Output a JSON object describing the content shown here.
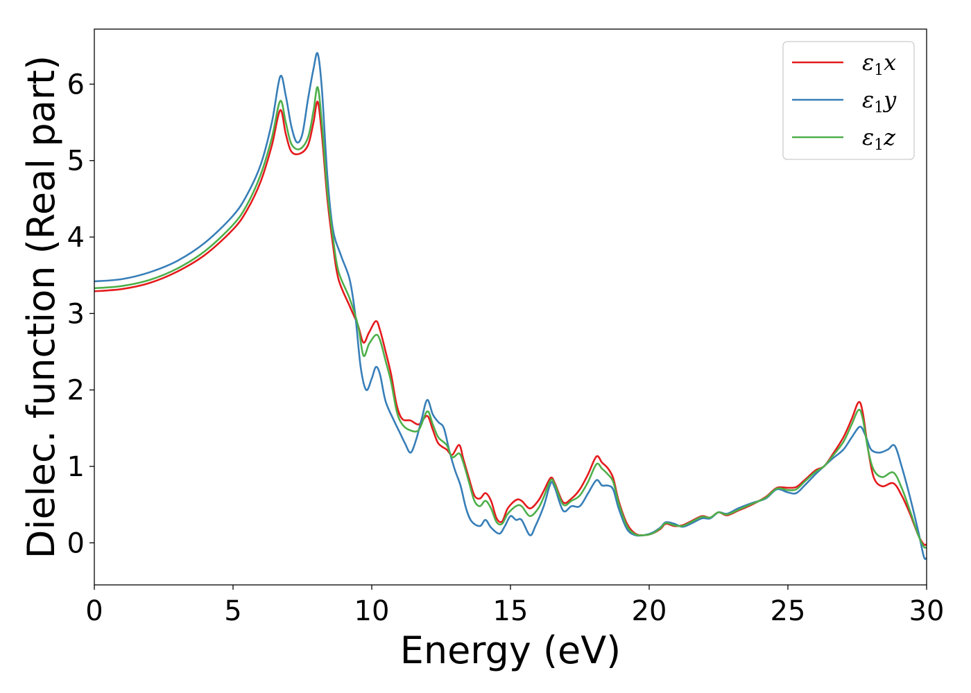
{
  "chart_data": {
    "type": "line",
    "title": "",
    "xlabel": "Energy (eV)",
    "ylabel": "Dielec. function (Real part)",
    "xlim": [
      0,
      30
    ],
    "ylim": [
      -0.55,
      6.72
    ],
    "xticks": [
      0,
      5,
      10,
      15,
      20,
      25,
      30
    ],
    "yticks": [
      0,
      1,
      2,
      3,
      4,
      5,
      6
    ],
    "grid": false,
    "legend_position": "top-right",
    "series": [
      {
        "name": "ε1x",
        "label_base": "ε",
        "label_sub": "1",
        "label_rest": "x",
        "color": "#e41a1c",
        "points": [
          [
            0,
            3.29
          ],
          [
            1,
            3.32
          ],
          [
            2,
            3.4
          ],
          [
            3,
            3.55
          ],
          [
            4,
            3.77
          ],
          [
            5,
            4.1
          ],
          [
            5.5,
            4.35
          ],
          [
            6,
            4.73
          ],
          [
            6.4,
            5.2
          ],
          [
            6.7,
            5.66
          ],
          [
            6.9,
            5.35
          ],
          [
            7.1,
            5.12
          ],
          [
            7.4,
            5.09
          ],
          [
            7.7,
            5.2
          ],
          [
            7.9,
            5.5
          ],
          [
            8.05,
            5.77
          ],
          [
            8.2,
            5.35
          ],
          [
            8.4,
            4.5
          ],
          [
            8.6,
            3.9
          ],
          [
            8.8,
            3.45
          ],
          [
            9.2,
            3.1
          ],
          [
            9.5,
            2.85
          ],
          [
            9.7,
            2.62
          ],
          [
            9.9,
            2.75
          ],
          [
            10.15,
            2.9
          ],
          [
            10.3,
            2.78
          ],
          [
            10.5,
            2.5
          ],
          [
            10.7,
            2.2
          ],
          [
            10.9,
            1.8
          ],
          [
            11.1,
            1.62
          ],
          [
            11.4,
            1.6
          ],
          [
            11.7,
            1.55
          ],
          [
            12.0,
            1.66
          ],
          [
            12.2,
            1.48
          ],
          [
            12.4,
            1.3
          ],
          [
            12.7,
            1.22
          ],
          [
            12.9,
            1.15
          ],
          [
            13.15,
            1.28
          ],
          [
            13.3,
            1.1
          ],
          [
            13.5,
            0.85
          ],
          [
            13.7,
            0.62
          ],
          [
            13.9,
            0.58
          ],
          [
            14.1,
            0.65
          ],
          [
            14.3,
            0.55
          ],
          [
            14.5,
            0.32
          ],
          [
            14.7,
            0.28
          ],
          [
            14.9,
            0.45
          ],
          [
            15.2,
            0.56
          ],
          [
            15.4,
            0.55
          ],
          [
            15.7,
            0.45
          ],
          [
            16.0,
            0.55
          ],
          [
            16.2,
            0.68
          ],
          [
            16.45,
            0.85
          ],
          [
            16.6,
            0.78
          ],
          [
            16.9,
            0.53
          ],
          [
            17.2,
            0.58
          ],
          [
            17.5,
            0.7
          ],
          [
            17.8,
            0.9
          ],
          [
            18.1,
            1.13
          ],
          [
            18.3,
            1.05
          ],
          [
            18.5,
            0.98
          ],
          [
            18.7,
            0.85
          ],
          [
            18.9,
            0.55
          ],
          [
            19.2,
            0.25
          ],
          [
            19.5,
            0.12
          ],
          [
            19.8,
            0.1
          ],
          [
            20.1,
            0.12
          ],
          [
            20.4,
            0.18
          ],
          [
            20.6,
            0.25
          ],
          [
            20.9,
            0.22
          ],
          [
            21.2,
            0.23
          ],
          [
            21.5,
            0.28
          ],
          [
            21.9,
            0.35
          ],
          [
            22.2,
            0.33
          ],
          [
            22.5,
            0.4
          ],
          [
            22.8,
            0.36
          ],
          [
            23.2,
            0.42
          ],
          [
            23.7,
            0.5
          ],
          [
            24.2,
            0.6
          ],
          [
            24.6,
            0.72
          ],
          [
            25.0,
            0.72
          ],
          [
            25.3,
            0.73
          ],
          [
            25.6,
            0.82
          ],
          [
            26.0,
            0.95
          ],
          [
            26.3,
            1.0
          ],
          [
            26.6,
            1.15
          ],
          [
            27.0,
            1.38
          ],
          [
            27.3,
            1.62
          ],
          [
            27.55,
            1.84
          ],
          [
            27.7,
            1.7
          ],
          [
            27.9,
            1.2
          ],
          [
            28.1,
            0.85
          ],
          [
            28.4,
            0.74
          ],
          [
            28.8,
            0.78
          ],
          [
            29.1,
            0.62
          ],
          [
            29.4,
            0.38
          ],
          [
            29.7,
            0.1
          ],
          [
            29.9,
            -0.02
          ],
          [
            30,
            -0.02
          ]
        ]
      },
      {
        "name": "ε1y",
        "label_base": "ε",
        "label_sub": "1",
        "label_rest": "y",
        "color": "#377eb8",
        "points": [
          [
            0,
            3.42
          ],
          [
            1,
            3.45
          ],
          [
            2,
            3.54
          ],
          [
            3,
            3.69
          ],
          [
            4,
            3.93
          ],
          [
            5,
            4.28
          ],
          [
            5.5,
            4.55
          ],
          [
            6,
            4.95
          ],
          [
            6.4,
            5.5
          ],
          [
            6.7,
            6.1
          ],
          [
            6.9,
            5.85
          ],
          [
            7.1,
            5.45
          ],
          [
            7.3,
            5.24
          ],
          [
            7.5,
            5.35
          ],
          [
            7.7,
            5.8
          ],
          [
            7.9,
            6.2
          ],
          [
            8.05,
            6.4
          ],
          [
            8.2,
            5.95
          ],
          [
            8.4,
            4.8
          ],
          [
            8.6,
            4.1
          ],
          [
            8.9,
            3.75
          ],
          [
            9.2,
            3.45
          ],
          [
            9.4,
            3.0
          ],
          [
            9.6,
            2.3
          ],
          [
            9.8,
            2.0
          ],
          [
            10.0,
            2.15
          ],
          [
            10.15,
            2.3
          ],
          [
            10.3,
            2.2
          ],
          [
            10.5,
            1.85
          ],
          [
            10.8,
            1.6
          ],
          [
            11.0,
            1.45
          ],
          [
            11.2,
            1.3
          ],
          [
            11.4,
            1.18
          ],
          [
            11.6,
            1.35
          ],
          [
            11.8,
            1.62
          ],
          [
            12.0,
            1.87
          ],
          [
            12.2,
            1.68
          ],
          [
            12.4,
            1.58
          ],
          [
            12.6,
            1.5
          ],
          [
            12.8,
            1.2
          ],
          [
            13.0,
            0.95
          ],
          [
            13.2,
            0.75
          ],
          [
            13.4,
            0.45
          ],
          [
            13.6,
            0.28
          ],
          [
            13.9,
            0.22
          ],
          [
            14.1,
            0.3
          ],
          [
            14.3,
            0.2
          ],
          [
            14.6,
            0.12
          ],
          [
            14.8,
            0.22
          ],
          [
            15.0,
            0.35
          ],
          [
            15.2,
            0.3
          ],
          [
            15.4,
            0.3
          ],
          [
            15.7,
            0.1
          ],
          [
            15.9,
            0.22
          ],
          [
            16.2,
            0.48
          ],
          [
            16.45,
            0.78
          ],
          [
            16.6,
            0.72
          ],
          [
            16.9,
            0.42
          ],
          [
            17.2,
            0.48
          ],
          [
            17.5,
            0.48
          ],
          [
            17.8,
            0.65
          ],
          [
            18.1,
            0.82
          ],
          [
            18.3,
            0.75
          ],
          [
            18.5,
            0.75
          ],
          [
            18.7,
            0.7
          ],
          [
            18.9,
            0.45
          ],
          [
            19.2,
            0.18
          ],
          [
            19.5,
            0.1
          ],
          [
            19.8,
            0.1
          ],
          [
            20.1,
            0.13
          ],
          [
            20.4,
            0.2
          ],
          [
            20.6,
            0.27
          ],
          [
            20.9,
            0.25
          ],
          [
            21.2,
            0.21
          ],
          [
            21.5,
            0.25
          ],
          [
            21.9,
            0.32
          ],
          [
            22.2,
            0.32
          ],
          [
            22.5,
            0.4
          ],
          [
            22.8,
            0.38
          ],
          [
            23.2,
            0.45
          ],
          [
            23.7,
            0.52
          ],
          [
            24.2,
            0.58
          ],
          [
            24.6,
            0.7
          ],
          [
            25.0,
            0.66
          ],
          [
            25.3,
            0.65
          ],
          [
            25.6,
            0.75
          ],
          [
            26.0,
            0.9
          ],
          [
            26.3,
            1.0
          ],
          [
            26.6,
            1.1
          ],
          [
            27.0,
            1.22
          ],
          [
            27.3,
            1.38
          ],
          [
            27.6,
            1.52
          ],
          [
            27.8,
            1.4
          ],
          [
            28.0,
            1.22
          ],
          [
            28.3,
            1.18
          ],
          [
            28.6,
            1.22
          ],
          [
            28.85,
            1.27
          ],
          [
            29.1,
            1.0
          ],
          [
            29.4,
            0.6
          ],
          [
            29.7,
            0.15
          ],
          [
            29.9,
            -0.18
          ],
          [
            30,
            -0.2
          ]
        ]
      },
      {
        "name": "ε1z",
        "label_base": "ε",
        "label_sub": "1",
        "label_rest": "z",
        "color": "#4daf4a",
        "points": [
          [
            0,
            3.33
          ],
          [
            1,
            3.36
          ],
          [
            2,
            3.44
          ],
          [
            3,
            3.59
          ],
          [
            4,
            3.82
          ],
          [
            5,
            4.16
          ],
          [
            5.5,
            4.42
          ],
          [
            6,
            4.82
          ],
          [
            6.4,
            5.3
          ],
          [
            6.7,
            5.78
          ],
          [
            6.9,
            5.5
          ],
          [
            7.1,
            5.22
          ],
          [
            7.4,
            5.15
          ],
          [
            7.7,
            5.3
          ],
          [
            7.9,
            5.65
          ],
          [
            8.05,
            5.96
          ],
          [
            8.2,
            5.5
          ],
          [
            8.4,
            4.6
          ],
          [
            8.6,
            4.0
          ],
          [
            8.8,
            3.55
          ],
          [
            9.2,
            3.2
          ],
          [
            9.5,
            2.85
          ],
          [
            9.7,
            2.45
          ],
          [
            9.9,
            2.6
          ],
          [
            10.15,
            2.72
          ],
          [
            10.3,
            2.65
          ],
          [
            10.5,
            2.38
          ],
          [
            10.7,
            2.1
          ],
          [
            10.9,
            1.72
          ],
          [
            11.1,
            1.55
          ],
          [
            11.4,
            1.47
          ],
          [
            11.7,
            1.48
          ],
          [
            12.0,
            1.72
          ],
          [
            12.2,
            1.55
          ],
          [
            12.4,
            1.38
          ],
          [
            12.7,
            1.28
          ],
          [
            12.9,
            1.12
          ],
          [
            13.15,
            1.17
          ],
          [
            13.3,
            1.05
          ],
          [
            13.5,
            0.8
          ],
          [
            13.7,
            0.55
          ],
          [
            13.9,
            0.48
          ],
          [
            14.1,
            0.55
          ],
          [
            14.3,
            0.45
          ],
          [
            14.5,
            0.27
          ],
          [
            14.7,
            0.25
          ],
          [
            14.9,
            0.38
          ],
          [
            15.2,
            0.48
          ],
          [
            15.4,
            0.48
          ],
          [
            15.7,
            0.35
          ],
          [
            16.0,
            0.45
          ],
          [
            16.2,
            0.6
          ],
          [
            16.45,
            0.82
          ],
          [
            16.6,
            0.76
          ],
          [
            16.9,
            0.5
          ],
          [
            17.2,
            0.55
          ],
          [
            17.5,
            0.62
          ],
          [
            17.8,
            0.8
          ],
          [
            18.1,
            1.03
          ],
          [
            18.3,
            0.97
          ],
          [
            18.5,
            0.9
          ],
          [
            18.7,
            0.8
          ],
          [
            18.9,
            0.52
          ],
          [
            19.2,
            0.22
          ],
          [
            19.5,
            0.11
          ],
          [
            19.8,
            0.1
          ],
          [
            20.1,
            0.12
          ],
          [
            20.4,
            0.19
          ],
          [
            20.6,
            0.26
          ],
          [
            20.9,
            0.23
          ],
          [
            21.2,
            0.22
          ],
          [
            21.5,
            0.27
          ],
          [
            21.9,
            0.34
          ],
          [
            22.2,
            0.33
          ],
          [
            22.5,
            0.4
          ],
          [
            22.8,
            0.37
          ],
          [
            23.2,
            0.43
          ],
          [
            23.7,
            0.51
          ],
          [
            24.2,
            0.59
          ],
          [
            24.6,
            0.71
          ],
          [
            25.0,
            0.69
          ],
          [
            25.3,
            0.7
          ],
          [
            25.6,
            0.8
          ],
          [
            26.0,
            0.93
          ],
          [
            26.3,
            1.0
          ],
          [
            26.6,
            1.13
          ],
          [
            27.0,
            1.32
          ],
          [
            27.3,
            1.55
          ],
          [
            27.55,
            1.74
          ],
          [
            27.7,
            1.62
          ],
          [
            27.9,
            1.2
          ],
          [
            28.1,
            0.95
          ],
          [
            28.4,
            0.86
          ],
          [
            28.8,
            0.92
          ],
          [
            29.1,
            0.72
          ],
          [
            29.4,
            0.42
          ],
          [
            29.7,
            0.1
          ],
          [
            29.9,
            -0.05
          ],
          [
            30,
            -0.06
          ]
        ]
      }
    ]
  }
}
